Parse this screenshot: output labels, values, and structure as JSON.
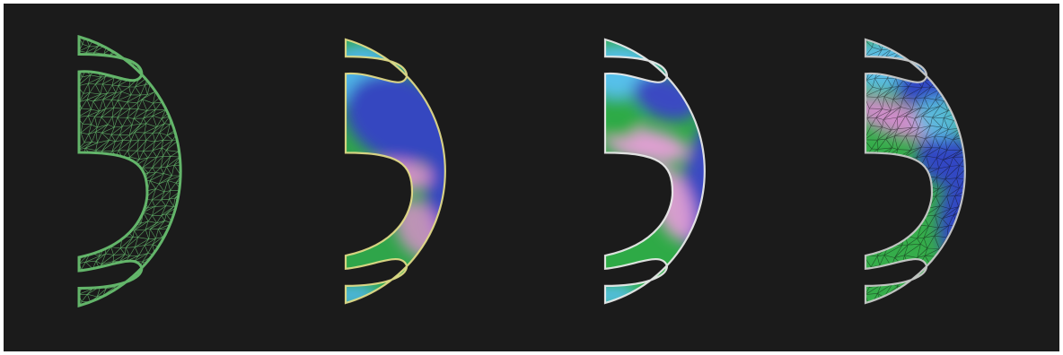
{
  "figure": {
    "background": "#1b1b1b",
    "panels": [
      {
        "id": "mesh",
        "style": "wireframe",
        "colors": [
          "#63b56a"
        ]
      },
      {
        "id": "contour-a",
        "style": "contour",
        "colors": [
          "#4fb6e6",
          "#3446c0",
          "#2fa54a",
          "#e08fd0",
          "#e8e08a"
        ]
      },
      {
        "id": "contour-b",
        "style": "contour",
        "colors": [
          "#56c0ea",
          "#3a48c2",
          "#2eaa46",
          "#e79fd8",
          "#f0f0f0"
        ]
      },
      {
        "id": "contour-mesh",
        "style": "contour-with-mesh",
        "colors": [
          "#5bbde6",
          "#3346c4",
          "#35ad4a",
          "#d88ad2",
          "#cfcfcf"
        ]
      }
    ]
  }
}
